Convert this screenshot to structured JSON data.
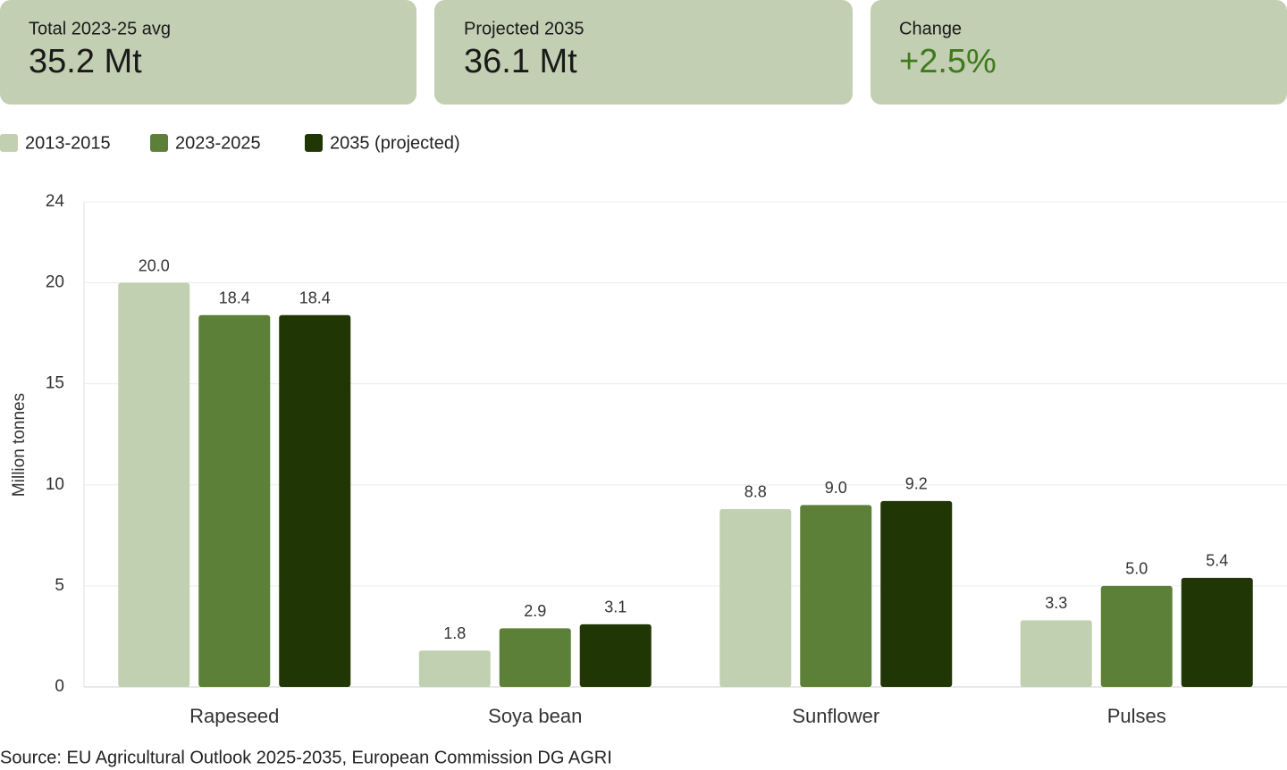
{
  "cards": [
    {
      "label": "Total 2023-25 avg",
      "value": "35.2 Mt"
    },
    {
      "label": "Projected 2035",
      "value": "36.1 Mt"
    },
    {
      "label": "Change",
      "value": "+2.5%"
    }
  ],
  "chart_data": {
    "type": "bar",
    "y_label": "Million tonnes",
    "categories": [
      "Rapeseed",
      "Soya bean",
      "Sunflower",
      "Pulses"
    ],
    "series": [
      {
        "name": "2013-2015",
        "color": "#c2d0b2",
        "values": [
          20,
          1.8,
          8.8,
          3.3
        ],
        "value_labels": [
          "20.0",
          "1.8",
          "8.8",
          "3.3"
        ]
      },
      {
        "name": "2023-2025",
        "color": "#5c8038",
        "values": [
          18.4,
          2.9,
          9,
          5
        ],
        "value_labels": [
          "18.4",
          "2.9",
          "9.0",
          "5.0"
        ]
      },
      {
        "name": "2035 (projected)",
        "color": "#213605",
        "values": [
          18.4,
          3.1,
          9.2,
          5.4
        ],
        "value_labels": [
          "18.4",
          "3.1",
          "9.2",
          "5.4"
        ]
      }
    ],
    "ylim": [
      0,
      24
    ],
    "yticks": [
      0,
      5,
      10,
      15,
      20,
      24
    ],
    "grid": true
  },
  "source": "Source: EU Agricultural Outlook 2025-2035, European Commission DG AGRI"
}
